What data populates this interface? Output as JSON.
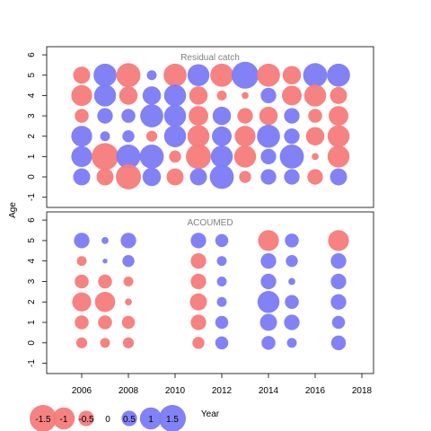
{
  "chart_data": {
    "type": "scatter",
    "subtype": "bubble",
    "xlabel": "Year",
    "ylabel": "Age",
    "xlim": [
      2004.5,
      2018.5
    ],
    "ylim": [
      -1.5,
      6.4
    ],
    "x_ticks": [
      2006,
      2008,
      2010,
      2012,
      2014,
      2016,
      2018
    ],
    "y_ticks": [
      -1,
      0,
      1,
      2,
      3,
      4,
      5,
      6
    ],
    "positive_color": "#7b7bf5",
    "negative_color": "#f57b7b",
    "panels": [
      {
        "title": "Residual catch",
        "points": [
          {
            "year": 2006,
            "age": 5,
            "value": -0.6
          },
          {
            "year": 2007,
            "age": 5,
            "value": 1.1
          },
          {
            "year": 2008,
            "age": 5,
            "value": -1.2
          },
          {
            "year": 2009,
            "age": 5,
            "value": 0.2
          },
          {
            "year": 2010,
            "age": 5,
            "value": -1.1
          },
          {
            "year": 2011,
            "age": 5,
            "value": 1.0
          },
          {
            "year": 2012,
            "age": 5,
            "value": -1.1
          },
          {
            "year": 2013,
            "age": 5,
            "value": 1.5
          },
          {
            "year": 2014,
            "age": 5,
            "value": -1.1
          },
          {
            "year": 2015,
            "age": 5,
            "value": -0.7
          },
          {
            "year": 2016,
            "age": 5,
            "value": 1.2
          },
          {
            "year": 2017,
            "age": 5,
            "value": 1.1
          },
          {
            "year": 2006,
            "age": 4,
            "value": -0.9
          },
          {
            "year": 2007,
            "age": 4,
            "value": 1.0
          },
          {
            "year": 2008,
            "age": 4,
            "value": -0.7
          },
          {
            "year": 2009,
            "age": 4,
            "value": 0.7
          },
          {
            "year": 2010,
            "age": 4,
            "value": 1.0
          },
          {
            "year": 2011,
            "age": 4,
            "value": -0.7
          },
          {
            "year": 2012,
            "age": 4,
            "value": -0.2
          },
          {
            "year": 2013,
            "age": 4,
            "value": -0.1
          },
          {
            "year": 2014,
            "age": 4,
            "value": 0.5
          },
          {
            "year": 2015,
            "age": 4,
            "value": -0.8
          },
          {
            "year": 2016,
            "age": 4,
            "value": -1.0
          },
          {
            "year": 2017,
            "age": 4,
            "value": -0.6
          },
          {
            "year": 2006,
            "age": 3,
            "value": -0.4
          },
          {
            "year": 2007,
            "age": 3,
            "value": 0.5
          },
          {
            "year": 2008,
            "age": 3,
            "value": 0.4
          },
          {
            "year": 2009,
            "age": 3,
            "value": 1.1
          },
          {
            "year": 2010,
            "age": 3,
            "value": 1.0
          },
          {
            "year": 2011,
            "age": 3,
            "value": -0.8
          },
          {
            "year": 2012,
            "age": 3,
            "value": 0.7
          },
          {
            "year": 2013,
            "age": 3,
            "value": -0.5
          },
          {
            "year": 2014,
            "age": 3,
            "value": -0.7
          },
          {
            "year": 2015,
            "age": 3,
            "value": 0.5
          },
          {
            "year": 2016,
            "age": 3,
            "value": -0.4
          },
          {
            "year": 2017,
            "age": 3,
            "value": -0.8
          },
          {
            "year": 2006,
            "age": 2,
            "value": 0.9
          },
          {
            "year": 2007,
            "age": 2,
            "value": 0.2
          },
          {
            "year": 2008,
            "age": 2,
            "value": 0.3
          },
          {
            "year": 2009,
            "age": 2,
            "value": -0.25
          },
          {
            "year": 2010,
            "age": 2,
            "value": 1.0
          },
          {
            "year": 2011,
            "age": 2,
            "value": -1.0
          },
          {
            "year": 2012,
            "age": 2,
            "value": 0.8
          },
          {
            "year": 2013,
            "age": 2,
            "value": -0.9
          },
          {
            "year": 2014,
            "age": 2,
            "value": 1.1
          },
          {
            "year": 2015,
            "age": 2,
            "value": 0.5
          },
          {
            "year": 2016,
            "age": 2,
            "value": -0.7
          },
          {
            "year": 2017,
            "age": 2,
            "value": -1.0
          },
          {
            "year": 2006,
            "age": 1,
            "value": 0.9
          },
          {
            "year": 2007,
            "age": 1,
            "value": -1.5
          },
          {
            "year": 2008,
            "age": 1,
            "value": 1.2
          },
          {
            "year": 2009,
            "age": 1,
            "value": 1.2
          },
          {
            "year": 2010,
            "age": 1,
            "value": -0.3
          },
          {
            "year": 2011,
            "age": 1,
            "value": -1.3
          },
          {
            "year": 2012,
            "age": 1,
            "value": 1.0
          },
          {
            "year": 2013,
            "age": 1,
            "value": -1.0
          },
          {
            "year": 2014,
            "age": 1,
            "value": 0.5
          },
          {
            "year": 2015,
            "age": 1,
            "value": 1.2
          },
          {
            "year": 2016,
            "age": 1,
            "value": -0.1
          },
          {
            "year": 2017,
            "age": 1,
            "value": -1.0
          },
          {
            "year": 2006,
            "age": 0,
            "value": 0.6
          },
          {
            "year": 2007,
            "age": 0,
            "value": -0.6
          },
          {
            "year": 2008,
            "age": 0,
            "value": -1.3
          },
          {
            "year": 2009,
            "age": 0,
            "value": 0.7
          },
          {
            "year": 2010,
            "age": 0,
            "value": -0.6
          },
          {
            "year": 2011,
            "age": 0,
            "value": 0.6
          },
          {
            "year": 2012,
            "age": 0,
            "value": 1.2
          },
          {
            "year": 2013,
            "age": 0,
            "value": -0.3
          },
          {
            "year": 2014,
            "age": 0,
            "value": 0.5
          },
          {
            "year": 2015,
            "age": 0,
            "value": 0.5
          },
          {
            "year": 2016,
            "age": 0,
            "value": -0.5
          },
          {
            "year": 2017,
            "age": 0,
            "value": 0.6
          }
        ]
      },
      {
        "title": "ACOUMED",
        "points": [
          {
            "year": 2006,
            "age": 5,
            "value": 0.5
          },
          {
            "year": 2007,
            "age": 5,
            "value": 0.1
          },
          {
            "year": 2008,
            "age": 5,
            "value": 0.5
          },
          {
            "year": 2011,
            "age": 5,
            "value": 0.5
          },
          {
            "year": 2012,
            "age": 5,
            "value": 0.35
          },
          {
            "year": 2014,
            "age": 5,
            "value": -0.9
          },
          {
            "year": 2015,
            "age": 5,
            "value": 0.4
          },
          {
            "year": 2017,
            "age": 5,
            "value": -0.9
          },
          {
            "year": 2006,
            "age": 4,
            "value": -0.2
          },
          {
            "year": 2007,
            "age": 4,
            "value": 0.05
          },
          {
            "year": 2008,
            "age": 4,
            "value": 0.3
          },
          {
            "year": 2011,
            "age": 4,
            "value": -0.5
          },
          {
            "year": 2012,
            "age": 4,
            "value": 0.2
          },
          {
            "year": 2014,
            "age": 4,
            "value": 0.5
          },
          {
            "year": 2015,
            "age": 4,
            "value": 0.3
          },
          {
            "year": 2017,
            "age": 4,
            "value": 0.5
          },
          {
            "year": 2006,
            "age": 3,
            "value": -0.4
          },
          {
            "year": 2007,
            "age": 3,
            "value": -0.4
          },
          {
            "year": 2008,
            "age": 3,
            "value": -0.2
          },
          {
            "year": 2011,
            "age": 3,
            "value": -0.5
          },
          {
            "year": 2012,
            "age": 3,
            "value": 0.2
          },
          {
            "year": 2014,
            "age": 3,
            "value": 0.5
          },
          {
            "year": 2015,
            "age": 3,
            "value": 0.1
          },
          {
            "year": 2017,
            "age": 3,
            "value": 0.5
          },
          {
            "year": 2006,
            "age": 2,
            "value": -0.75
          },
          {
            "year": 2007,
            "age": 2,
            "value": -0.85
          },
          {
            "year": 2008,
            "age": 2,
            "value": -0.1
          },
          {
            "year": 2011,
            "age": 2,
            "value": -0.6
          },
          {
            "year": 2012,
            "age": 2,
            "value": 0.2
          },
          {
            "year": 2014,
            "age": 2,
            "value": 1.0
          },
          {
            "year": 2015,
            "age": 2,
            "value": 0.4
          },
          {
            "year": 2017,
            "age": 2,
            "value": 0.5
          },
          {
            "year": 2006,
            "age": 1,
            "value": -0.4
          },
          {
            "year": 2007,
            "age": 1,
            "value": -0.4
          },
          {
            "year": 2008,
            "age": 1,
            "value": -0.35
          },
          {
            "year": 2011,
            "age": 1,
            "value": -0.5
          },
          {
            "year": 2012,
            "age": 1,
            "value": 0.35
          },
          {
            "year": 2014,
            "age": 1,
            "value": 0.6
          },
          {
            "year": 2015,
            "age": 1,
            "value": 0.5
          },
          {
            "year": 2017,
            "age": 1,
            "value": 0.35
          },
          {
            "year": 2006,
            "age": 0,
            "value": -0.25
          },
          {
            "year": 2007,
            "age": 0,
            "value": -0.2
          },
          {
            "year": 2008,
            "age": 0,
            "value": -0.25
          },
          {
            "year": 2011,
            "age": 0,
            "value": -0.3
          },
          {
            "year": 2012,
            "age": 0,
            "value": 0.35
          },
          {
            "year": 2014,
            "age": 0,
            "value": 0.4
          },
          {
            "year": 2015,
            "age": 0,
            "value": 0.2
          },
          {
            "year": 2017,
            "age": 0,
            "value": 0.45
          }
        ]
      }
    ],
    "legend": {
      "values": [
        -1.5,
        -1,
        -0.5,
        0,
        0.5,
        1,
        1.5
      ],
      "labels": [
        "-1.5",
        "-1",
        "-0.5",
        "0",
        "0.5",
        "1",
        "1.5"
      ],
      "position": "bottom-left"
    }
  }
}
